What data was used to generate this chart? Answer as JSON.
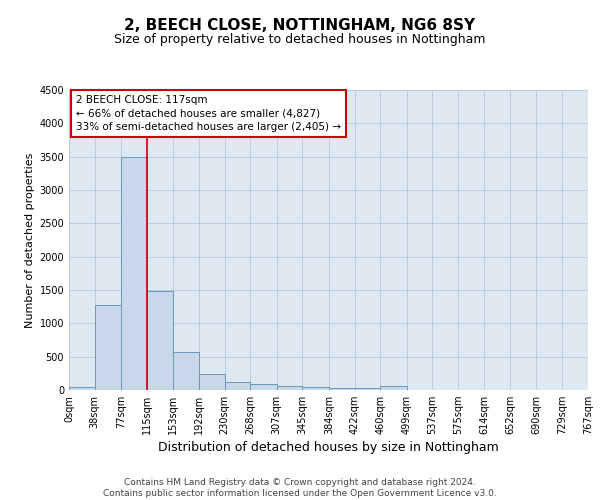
{
  "title1": "2, BEECH CLOSE, NOTTINGHAM, NG6 8SY",
  "title2": "Size of property relative to detached houses in Nottingham",
  "xlabel": "Distribution of detached houses by size in Nottingham",
  "ylabel": "Number of detached properties",
  "footer1": "Contains HM Land Registry data © Crown copyright and database right 2024.",
  "footer2": "Contains public sector information licensed under the Open Government Licence v3.0.",
  "bin_edges": [
    0,
    38,
    77,
    115,
    153,
    192,
    230,
    268,
    307,
    345,
    384,
    422,
    460,
    499,
    537,
    575,
    614,
    652,
    690,
    729,
    767
  ],
  "bar_heights": [
    40,
    1280,
    3500,
    1480,
    575,
    240,
    115,
    85,
    55,
    40,
    30,
    25,
    55,
    5,
    0,
    0,
    0,
    0,
    0,
    0
  ],
  "bar_color": "#c8d8ea",
  "bar_edge_color": "#6699bb",
  "bar_edge_width": 0.7,
  "marker_x": 115,
  "marker_color": "#cc0000",
  "annotation_line1": "2 BEECH CLOSE: 117sqm",
  "annotation_line2": "← 66% of detached houses are smaller (4,827)",
  "annotation_line3": "33% of semi-detached houses are larger (2,405) →",
  "annotation_box_color": "#cc0000",
  "xlim": [
    0,
    767
  ],
  "ylim": [
    0,
    4500
  ],
  "yticks": [
    0,
    500,
    1000,
    1500,
    2000,
    2500,
    3000,
    3500,
    4000,
    4500
  ],
  "grid_color": "#bbccdd",
  "bg_color": "#dde8f0",
  "title1_fontsize": 11,
  "title2_fontsize": 9,
  "xlabel_fontsize": 9,
  "ylabel_fontsize": 8,
  "tick_fontsize": 7,
  "footer_fontsize": 6.5,
  "ann_fontsize": 7.5
}
